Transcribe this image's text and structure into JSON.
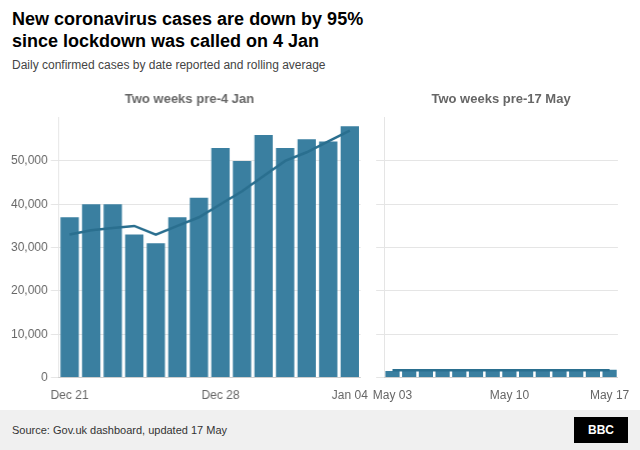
{
  "title": [
    "New coronavirus cases are down by 95%",
    "since lockdown was called on 4 Jan"
  ],
  "subtitle": "Daily confirmed cases by date reported and rolling average",
  "annotations": [
    "Source: Gov.uk dashboard, updated 17 May",
    "BBC"
  ],
  "chart_data": [
    {
      "type": "bar",
      "title": "Two weeks pre-4 Jan",
      "categories": [
        "Dec 21",
        null,
        null,
        null,
        null,
        null,
        null,
        "Dec 28",
        null,
        null,
        null,
        null,
        null,
        "Jan 04"
      ],
      "series": [
        {
          "type": "bar",
          "color": "#3a7fa0",
          "values": [
            37000,
            40000,
            40000,
            33000,
            31000,
            37000,
            41500,
            53000,
            50000,
            56000,
            53000,
            55000,
            54500,
            58000
          ]
        },
        {
          "type": "line",
          "color": "#2a6f8f",
          "values": [
            33000,
            34000,
            34500,
            35000,
            33000,
            35000,
            37000,
            40000,
            43000,
            46500,
            50000,
            52000,
            54500,
            57000
          ]
        }
      ],
      "ylim": [
        0,
        60000
      ],
      "yticks": [
        0,
        {
          "value": 10000,
          "label": "10,000"
        },
        {
          "value": 20000,
          "label": "20,000"
        },
        {
          "value": 30000,
          "label": "30,000"
        },
        {
          "value": 40000,
          "label": "40,000"
        },
        {
          "value": 50000,
          "label": "50,000"
        }
      ],
      "grid": true
    },
    {
      "type": "bar",
      "title": "Two weeks pre-17 May",
      "categories": [
        "May 03",
        null,
        null,
        null,
        null,
        null,
        null,
        "May 10",
        null,
        null,
        null,
        null,
        null,
        "May 17"
      ],
      "series": [
        {
          "type": "bar",
          "color": "#3a7fa0",
          "values": [
            1500,
            1600,
            1700,
            1800,
            1700,
            1600,
            1700,
            1800,
            1700,
            1600,
            1700,
            1800,
            1700,
            1800
          ]
        },
        {
          "type": "line",
          "color": "#2a6f8f",
          "values": [
            1700,
            1700,
            1700,
            1700,
            1700,
            1700,
            1700,
            1700,
            1700,
            1700,
            1700,
            1700,
            1700,
            1700
          ]
        }
      ],
      "ylim": [
        0,
        60000
      ],
      "yticks": [
        0,
        10000,
        20000,
        30000,
        40000,
        50000
      ],
      "tick_labels": "x",
      "grid": true
    }
  ]
}
